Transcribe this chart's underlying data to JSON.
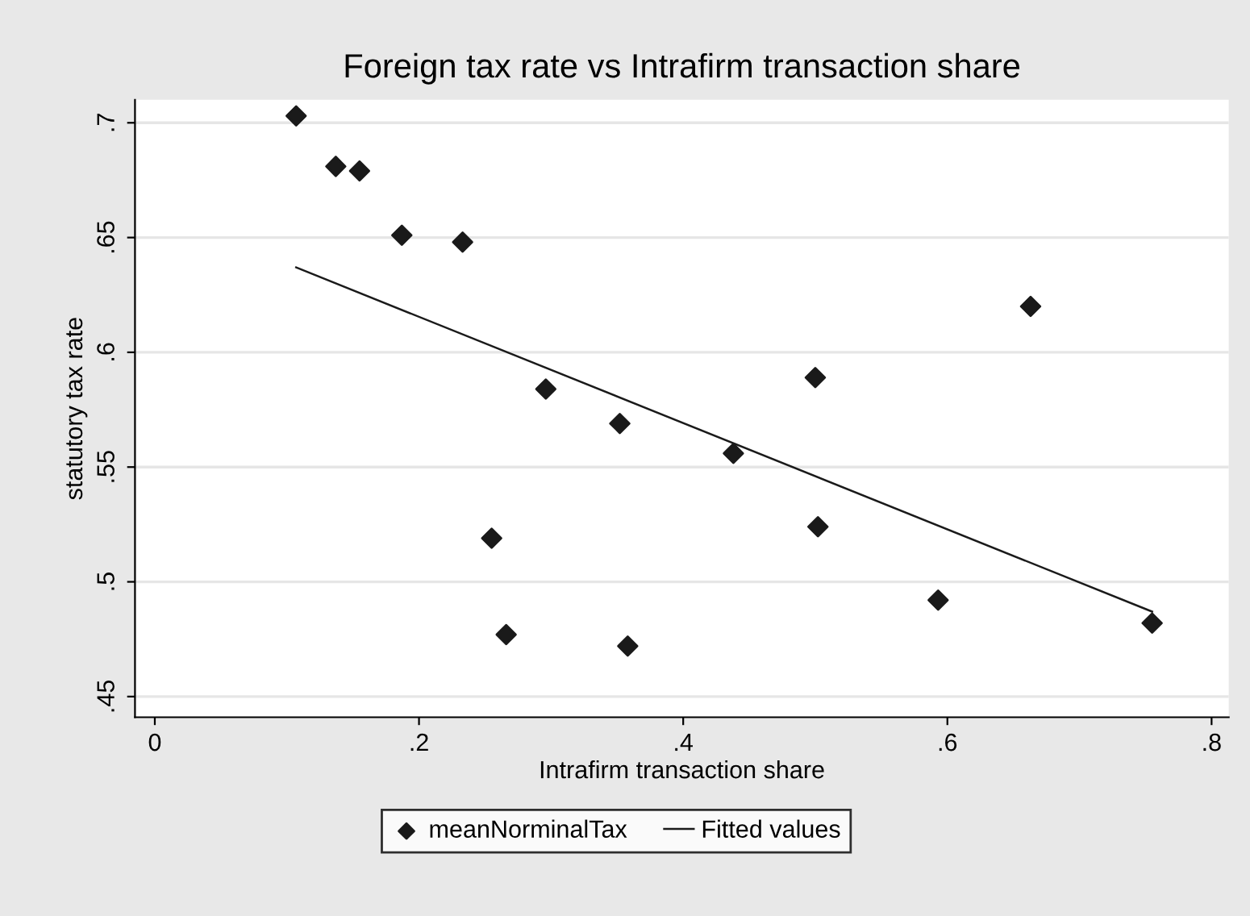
{
  "chart_data": {
    "type": "scatter",
    "title": "Foreign tax rate vs Intrafirm transaction share",
    "xlabel": "Intrafirm transaction share",
    "ylabel": "statutory tax rate",
    "series": [
      {
        "name": "meanNorminalTax",
        "color": "#1a1a1a",
        "marker": "diamond",
        "x": [
          0.107,
          0.137,
          0.155,
          0.187,
          0.233,
          0.255,
          0.266,
          0.296,
          0.352,
          0.358,
          0.438,
          0.5,
          0.502,
          0.593,
          0.663,
          0.755
        ],
        "values": [
          0.703,
          0.681,
          0.679,
          0.651,
          0.648,
          0.519,
          0.477,
          0.584,
          0.569,
          0.472,
          0.556,
          0.589,
          0.524,
          0.492,
          0.62,
          0.482
        ]
      },
      {
        "name": "Fitted values",
        "type": "line",
        "color": "#1a1a1a",
        "marker": "none",
        "line_style": "solid",
        "x": [
          0.107,
          0.755
        ],
        "values": [
          0.637,
          0.487
        ]
      }
    ],
    "xlim": [
      -0.015,
      0.813
    ],
    "ylim": [
      0.441,
      0.71
    ],
    "xticks": [
      {
        "value": 0,
        "label": "0"
      },
      {
        "value": 0.2,
        "label": ".2"
      },
      {
        "value": 0.4,
        "label": ".4"
      },
      {
        "value": 0.6,
        "label": ".6"
      },
      {
        "value": 0.8,
        "label": ".8"
      }
    ],
    "yticks": [
      {
        "value": 0.45,
        "label": ".45"
      },
      {
        "value": 0.5,
        "label": ".5"
      },
      {
        "value": 0.55,
        "label": ".55"
      },
      {
        "value": 0.6,
        "label": ".6"
      },
      {
        "value": 0.65,
        "label": ".65"
      },
      {
        "value": 0.7,
        "label": ".7"
      }
    ],
    "grid": "y",
    "legend": "bottom"
  }
}
